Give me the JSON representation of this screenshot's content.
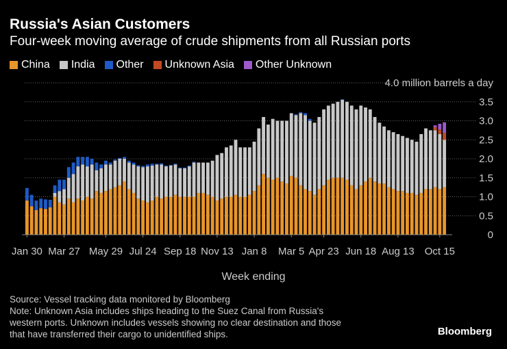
{
  "title": "Russia's Asian Customers",
  "subtitle": "Four-week moving average of crude shipments from all Russian ports",
  "source_lines": [
    "Source: Vessel tracking data monitored by Bloomberg",
    "Note: Unknown Asia includes ships heading to the Suez Canal from Russia's",
    "western ports. Unknown includes vessels showing no clear destination and those",
    "that have transferred their cargo to unidentified ships."
  ],
  "brand": "Bloomberg",
  "colors": {
    "China": "#e8952b",
    "India": "#c8c8c8",
    "Other": "#1e5bc6",
    "Unknown Asia": "#c24a23",
    "Other Unknown": "#9b59c9",
    "grid": "#666666",
    "axis": "#888888"
  },
  "chart_data": {
    "type": "bar",
    "stacked": true,
    "title": "Russia's Asian Customers",
    "subtitle": "Four-week moving average of crude shipments from all Russian ports",
    "xlabel": "Week ending",
    "ylabel": "4.0 million barrels a day",
    "ylim": [
      0,
      4.0
    ],
    "yticks": [
      0,
      0.5,
      1.0,
      1.5,
      2.0,
      2.5,
      3.0,
      3.5
    ],
    "ytick_labels": [
      "0",
      "0.5",
      "1.0",
      "1.5",
      "2.0",
      "2.5",
      "3.0",
      "3.5"
    ],
    "top_tick_label": "4.0 million barrels a day",
    "xtick_labels": [
      {
        "label": "Jan 30",
        "index": 0
      },
      {
        "label": "Mar 27",
        "index": 8
      },
      {
        "label": "May 29",
        "index": 17
      },
      {
        "label": "Jul 24",
        "index": 25
      },
      {
        "label": "Sep 18",
        "index": 33
      },
      {
        "label": "Nov 13",
        "index": 41
      },
      {
        "label": "Jan 8",
        "index": 49
      },
      {
        "label": "Mar 5",
        "index": 57
      },
      {
        "label": "Apr 23",
        "index": 64
      },
      {
        "label": "Jun 18",
        "index": 72
      },
      {
        "label": "Aug 13",
        "index": 80
      },
      {
        "label": "Oct 15",
        "index": 89
      }
    ],
    "legend": [
      "China",
      "India",
      "Other",
      "Unknown Asia",
      "Other Unknown"
    ],
    "series": [
      {
        "name": "China",
        "values": [
          0.9,
          0.75,
          0.65,
          0.7,
          0.68,
          0.72,
          1.0,
          0.85,
          0.8,
          0.95,
          0.85,
          0.95,
          0.9,
          1.0,
          0.95,
          1.15,
          1.1,
          1.15,
          1.2,
          1.25,
          1.3,
          1.4,
          1.2,
          1.1,
          0.95,
          0.9,
          0.85,
          0.9,
          1.0,
          0.95,
          1.0,
          1.0,
          1.05,
          1.0,
          1.0,
          1.0,
          1.0,
          1.1,
          1.1,
          1.05,
          1.0,
          0.9,
          0.95,
          1.0,
          1.0,
          1.05,
          1.0,
          1.0,
          1.05,
          1.15,
          1.3,
          1.6,
          1.5,
          1.45,
          1.5,
          1.4,
          1.35,
          1.55,
          1.5,
          1.3,
          1.2,
          1.15,
          1.05,
          1.2,
          1.3,
          1.45,
          1.5,
          1.5,
          1.5,
          1.45,
          1.3,
          1.2,
          1.3,
          1.4,
          1.5,
          1.4,
          1.35,
          1.35,
          1.25,
          1.2,
          1.15,
          1.15,
          1.1,
          1.1,
          1.05,
          1.1,
          1.2,
          1.2,
          1.25,
          1.2,
          1.25
        ]
      },
      {
        "name": "India",
        "values": [
          0.0,
          0.0,
          0.0,
          0.0,
          0.0,
          0.0,
          0.1,
          0.3,
          0.4,
          0.55,
          0.75,
          0.85,
          0.95,
          0.8,
          0.9,
          0.55,
          0.65,
          0.7,
          0.65,
          0.7,
          0.7,
          0.6,
          0.7,
          0.75,
          0.85,
          0.88,
          0.95,
          0.92,
          0.85,
          0.9,
          0.8,
          0.82,
          0.8,
          0.75,
          0.75,
          0.8,
          0.9,
          0.8,
          0.8,
          0.85,
          0.95,
          1.2,
          1.2,
          1.3,
          1.35,
          1.45,
          1.3,
          1.3,
          1.25,
          1.3,
          1.5,
          1.5,
          1.4,
          1.6,
          1.5,
          1.6,
          1.65,
          1.65,
          1.65,
          1.9,
          1.95,
          1.85,
          1.9,
          1.9,
          2.0,
          1.95,
          1.95,
          2.0,
          2.05,
          2.05,
          2.1,
          2.1,
          2.1,
          1.95,
          1.8,
          1.7,
          1.6,
          1.5,
          1.5,
          1.5,
          1.5,
          1.45,
          1.45,
          1.4,
          1.4,
          1.55,
          1.6,
          1.55,
          1.5,
          1.45,
          1.25
        ]
      },
      {
        "name": "Other",
        "values": [
          0.33,
          0.3,
          0.25,
          0.25,
          0.25,
          0.2,
          0.2,
          0.3,
          0.25,
          0.28,
          0.3,
          0.25,
          0.2,
          0.25,
          0.15,
          0.2,
          0.1,
          0.1,
          0.05,
          0.03,
          0.02,
          0.05,
          0.05,
          0.05,
          0.03,
          0.03,
          0.05,
          0.05,
          0.02,
          0.03,
          0.02,
          0.02,
          0.02,
          0.02,
          0.02,
          0.02,
          0.02,
          0.0,
          0.0,
          0.0,
          0.0,
          0.0,
          0.0,
          0.0,
          0.0,
          0.0,
          0.0,
          0.0,
          0.0,
          0.0,
          0.0,
          0.0,
          0.0,
          0.0,
          0.0,
          0.0,
          0.0,
          0.0,
          0.02,
          0.03,
          0.05,
          0.05,
          0.0,
          0.0,
          0.0,
          0.0,
          0.0,
          0.0,
          0.02,
          0.0,
          0.0,
          0.0,
          0.0,
          0.0,
          0.0,
          0.0,
          0.0,
          0.0,
          0.0,
          0.0,
          0.0,
          0.0,
          0.0,
          0.0,
          0.0,
          0.0,
          0.0,
          0.0,
          0.0,
          0.0,
          0.0
        ]
      },
      {
        "name": "Unknown Asia",
        "values": [
          0,
          0,
          0,
          0,
          0,
          0,
          0,
          0,
          0,
          0,
          0,
          0,
          0,
          0,
          0,
          0,
          0,
          0,
          0,
          0,
          0,
          0,
          0,
          0,
          0,
          0,
          0,
          0,
          0,
          0,
          0,
          0,
          0,
          0,
          0,
          0,
          0,
          0,
          0,
          0,
          0,
          0,
          0,
          0,
          0,
          0,
          0,
          0,
          0,
          0,
          0,
          0,
          0,
          0,
          0,
          0,
          0,
          0,
          0,
          0,
          0,
          0,
          0,
          0,
          0,
          0,
          0,
          0,
          0,
          0,
          0,
          0,
          0,
          0,
          0,
          0,
          0,
          0,
          0,
          0,
          0,
          0,
          0,
          0,
          0,
          0,
          0,
          0,
          0.08,
          0.12,
          0.18
        ]
      },
      {
        "name": "Other Unknown",
        "values": [
          0,
          0,
          0,
          0,
          0,
          0,
          0,
          0,
          0,
          0,
          0,
          0,
          0,
          0,
          0,
          0,
          0,
          0,
          0,
          0,
          0,
          0,
          0,
          0,
          0,
          0,
          0,
          0,
          0,
          0,
          0,
          0,
          0,
          0,
          0,
          0,
          0,
          0,
          0,
          0,
          0,
          0,
          0,
          0,
          0,
          0,
          0,
          0,
          0,
          0,
          0,
          0,
          0,
          0,
          0,
          0,
          0,
          0,
          0,
          0,
          0,
          0,
          0,
          0,
          0,
          0,
          0,
          0,
          0,
          0,
          0,
          0,
          0,
          0,
          0,
          0,
          0,
          0,
          0,
          0,
          0,
          0,
          0,
          0,
          0,
          0,
          0,
          0,
          0.05,
          0.15,
          0.28
        ]
      }
    ]
  }
}
